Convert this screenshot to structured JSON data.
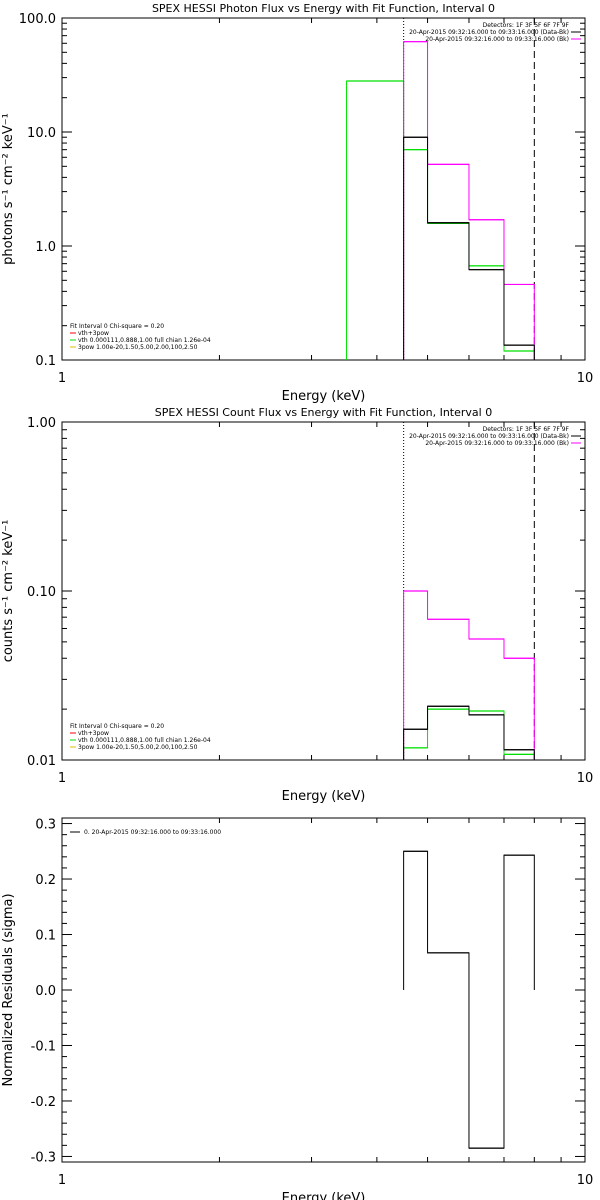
{
  "figure": {
    "panels": [
      {
        "key": "photon",
        "title": "SPEX HESSI Photon Flux vs Energy with Fit Function, Interval 0",
        "xlabel": "Energy (keV)",
        "ylabel": "photons s⁻¹ cm⁻² keV⁻¹",
        "legend_top": [
          "Detectors: 1F 3F 5F 6F 7F 9F",
          "20-Apr-2015 09:32:16.000 to 09:33:16.000 (Data-Bk)",
          "20-Apr-2015 09:32:16.000 to 09:33:16.000 (Bk)"
        ],
        "legend_bottom": [
          "Fit Interval 0   Chi-square = 0.20",
          "vth+3pow",
          "vth 0.000111,0.888,1.00  full chian 1.26e-04",
          "3pow 1.00e-20,1.50,5.00,2.00,100,2.50"
        ],
        "y_tick_labels": [
          "0.1",
          "1.0",
          "10.0",
          "100.0"
        ],
        "x_tick_labels": [
          "1",
          "10"
        ]
      },
      {
        "key": "count",
        "title": "SPEX HESSI Count Flux vs Energy with Fit Function, Interval 0",
        "xlabel": "Energy (keV)",
        "ylabel": "counts s⁻¹ cm⁻² keV⁻¹",
        "legend_top": [
          "Detectors: 1F 3F 5F 6F 7F 9F",
          "20-Apr-2015 09:32:16.000 to 09:33:16.000 (Data-Bk)",
          "20-Apr-2015 09:32:16.000 to 09:33:16.000 (Bk)"
        ],
        "legend_bottom": [
          "Fit Interval 0   Chi-square = 0.20",
          "vth+3pow",
          "vth 0.000111,0.888,1.00  full chian 1.26e-04",
          "3pow 1.00e-20,1.50,5.00,2.00,100,2.50"
        ],
        "y_tick_labels": [
          "0.01",
          "0.10",
          "1.00"
        ],
        "x_tick_labels": [
          "1",
          "10"
        ]
      },
      {
        "key": "resid",
        "title": "",
        "xlabel": "Energy (keV)",
        "ylabel": "Normalized Residuals (sigma)",
        "legend_top": [
          "0. 20-Apr-2015 09:32:16.000 to 09:33:16.000"
        ],
        "legend_bottom": [],
        "y_tick_labels": [
          "-0.3",
          "-0.2",
          "-0.1",
          "0.0",
          "0.1",
          "0.2",
          "0.3"
        ],
        "x_tick_labels": [
          "1",
          "10"
        ]
      }
    ]
  },
  "colors": {
    "axes": "#000000",
    "data_minus_bk": "#000000",
    "background": "#ff00ff",
    "fit_total": "#00e000",
    "vth": "#ff0000",
    "pow": "#e0c000"
  },
  "chart_data": [
    {
      "type": "line",
      "title": "SPEX HESSI Photon Flux vs Energy with Fit Function, Interval 0",
      "xlabel": "Energy (keV)",
      "ylabel": "photons s⁻¹ cm⁻² keV⁻¹",
      "xscale": "log",
      "yscale": "log",
      "xlim": [
        1,
        10
      ],
      "ylim": [
        0.1,
        100
      ],
      "vlines": [
        {
          "x": 4.5,
          "style": "dotted"
        },
        {
          "x": 8.0,
          "style": "dashed"
        }
      ],
      "series": [
        {
          "name": "20-Apr-2015 09:32:16.000 to 09:33:16.000 (Data-Bk)",
          "color": "#000000",
          "edges": [
            4.5,
            5.0,
            6.0,
            7.0,
            8.0
          ],
          "values": [
            9.0,
            1.6,
            0.62,
            0.135
          ]
        },
        {
          "name": "20-Apr-2015 09:32:16.000 to 09:33:16.000 (Bk)",
          "color": "#ff00ff",
          "edges": [
            4.5,
            5.0,
            6.0,
            7.0,
            8.0
          ],
          "values": [
            62,
            5.2,
            1.7,
            0.46
          ]
        },
        {
          "name": "vth+3pow",
          "color": "#00e000",
          "edges": [
            3.5,
            4.5,
            5.0,
            6.0,
            7.0,
            8.0
          ],
          "values": [
            28,
            7.0,
            1.58,
            0.67,
            0.12
          ]
        }
      ]
    },
    {
      "type": "line",
      "title": "SPEX HESSI Count Flux vs Energy with Fit Function, Interval 0",
      "xlabel": "Energy (keV)",
      "ylabel": "counts s⁻¹ cm⁻² keV⁻¹",
      "xscale": "log",
      "yscale": "log",
      "xlim": [
        1,
        10
      ],
      "ylim": [
        0.01,
        1.0
      ],
      "vlines": [
        {
          "x": 4.5,
          "style": "dotted"
        },
        {
          "x": 8.0,
          "style": "dashed"
        }
      ],
      "series": [
        {
          "name": "20-Apr-2015 09:32:16.000 to 09:33:16.000 (Data-Bk)",
          "color": "#000000",
          "edges": [
            4.5,
            5.0,
            6.0,
            7.0,
            8.0
          ],
          "values": [
            0.0152,
            0.0208,
            0.0185,
            0.0115
          ]
        },
        {
          "name": "20-Apr-2015 09:32:16.000 to 09:33:16.000 (Bk)",
          "color": "#ff00ff",
          "edges": [
            4.5,
            5.0,
            6.0,
            7.0,
            8.0
          ],
          "values": [
            0.1,
            0.068,
            0.052,
            0.04
          ]
        },
        {
          "name": "vth+3pow",
          "color": "#00e000",
          "edges": [
            4.5,
            5.0,
            6.0,
            7.0,
            8.0
          ],
          "values": [
            0.0118,
            0.02,
            0.0195,
            0.0108
          ]
        }
      ]
    },
    {
      "type": "line",
      "title": "",
      "xlabel": "Energy (keV)",
      "ylabel": "Normalized Residuals (sigma)",
      "xscale": "log",
      "yscale": "linear",
      "xlim": [
        1,
        10
      ],
      "ylim": [
        -0.31,
        0.31
      ],
      "series": [
        {
          "name": "0. 20-Apr-2015 09:32:16.000 to 09:33:16.000",
          "color": "#000000",
          "edges": [
            4.5,
            5.0,
            6.0,
            7.0,
            8.0
          ],
          "values": [
            0.25,
            0.067,
            -0.285,
            0.243
          ]
        }
      ]
    }
  ]
}
